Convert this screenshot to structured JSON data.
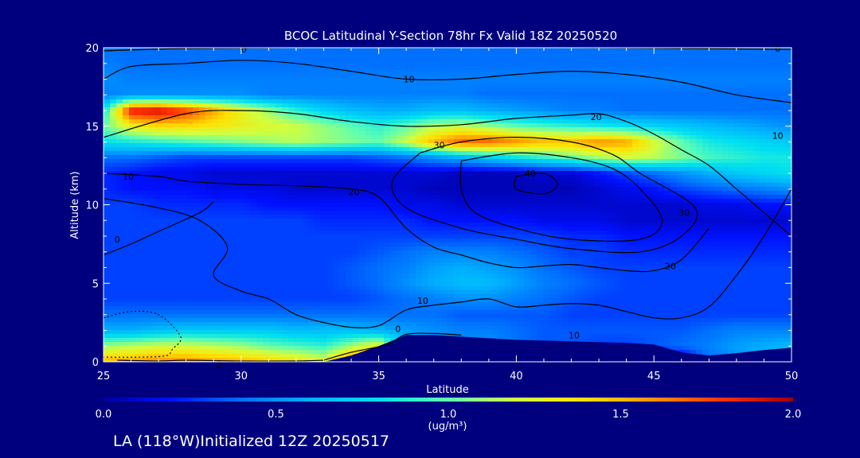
{
  "footer": {
    "caption": "LA (118°W)Initialized 12Z 20250517"
  },
  "chart_data": {
    "type": "heatmap",
    "title": "BCOC Latitudinal Y-Section 78hr  Fx Valid 18Z 20250520",
    "xlabel": "Latitude",
    "ylabel": "Altitude (km)",
    "xlim": [
      25,
      50
    ],
    "ylim": [
      0,
      20
    ],
    "x_ticks": [
      25,
      30,
      35,
      40,
      45,
      50
    ],
    "y_ticks": [
      0,
      5,
      10,
      15,
      20
    ],
    "colorbar": {
      "label": "(ug/m³)",
      "range": [
        0.0,
        2.0
      ],
      "ticks": [
        "0.0",
        "0.5",
        "1.0",
        "1.5",
        "2.0"
      ],
      "colors": [
        "#0000a0",
        "#0010ff",
        "#0070ff",
        "#00b0ff",
        "#00e0f0",
        "#60ffb0",
        "#d0ff40",
        "#ffe000",
        "#ff9000",
        "#ff3000",
        "#a00000"
      ]
    },
    "field": {
      "lat": [
        25,
        26,
        27,
        28,
        29,
        30,
        31,
        32,
        33,
        34,
        35,
        36,
        37,
        38,
        39,
        40,
        41,
        42,
        43,
        44,
        45,
        46,
        47,
        48,
        49,
        50
      ],
      "alt": [
        0,
        1,
        2,
        3,
        4,
        5,
        6,
        7,
        8,
        9,
        10,
        11,
        12,
        13,
        14,
        15,
        16,
        17,
        18,
        19,
        20
      ],
      "values": [
        [
          1.5,
          1.55,
          1.6,
          1.6,
          1.55,
          1.5,
          1.45,
          1.35,
          1.25,
          1.7,
          1.95,
          0.0,
          0.0,
          0.0,
          0.0,
          0.0,
          0.0,
          0.0,
          0.0,
          0.0,
          0.0,
          0.0,
          0.4,
          0.5,
          0.55,
          0.6
        ],
        [
          1.1,
          1.15,
          1.2,
          1.2,
          1.15,
          1.1,
          1.0,
          0.95,
          0.9,
          1.1,
          1.3,
          0.6,
          0.55,
          0.5,
          0.5,
          0.4,
          0.35,
          0.35,
          0.3,
          0.3,
          0.35,
          0.4,
          0.45,
          0.55,
          0.6,
          0.65
        ],
        [
          0.6,
          0.6,
          0.65,
          0.7,
          0.7,
          0.7,
          0.7,
          0.65,
          0.65,
          0.65,
          0.6,
          0.55,
          0.5,
          0.45,
          0.45,
          0.4,
          0.35,
          0.35,
          0.35,
          0.35,
          0.35,
          0.35,
          0.4,
          0.45,
          0.45,
          0.45
        ],
        [
          0.4,
          0.4,
          0.4,
          0.4,
          0.4,
          0.4,
          0.4,
          0.4,
          0.4,
          0.4,
          0.4,
          0.4,
          0.4,
          0.35,
          0.35,
          0.35,
          0.35,
          0.3,
          0.3,
          0.3,
          0.3,
          0.3,
          0.3,
          0.3,
          0.3,
          0.3
        ],
        [
          0.3,
          0.3,
          0.3,
          0.3,
          0.3,
          0.3,
          0.3,
          0.3,
          0.3,
          0.3,
          0.35,
          0.4,
          0.45,
          0.5,
          0.5,
          0.45,
          0.4,
          0.35,
          0.3,
          0.3,
          0.3,
          0.3,
          0.3,
          0.3,
          0.3,
          0.3
        ],
        [
          0.3,
          0.3,
          0.3,
          0.3,
          0.3,
          0.3,
          0.3,
          0.3,
          0.3,
          0.35,
          0.4,
          0.5,
          0.6,
          0.65,
          0.65,
          0.55,
          0.45,
          0.4,
          0.35,
          0.3,
          0.3,
          0.3,
          0.3,
          0.3,
          0.3,
          0.3
        ],
        [
          0.3,
          0.3,
          0.3,
          0.3,
          0.3,
          0.3,
          0.3,
          0.3,
          0.3,
          0.35,
          0.4,
          0.45,
          0.55,
          0.6,
          0.55,
          0.5,
          0.4,
          0.35,
          0.3,
          0.3,
          0.3,
          0.3,
          0.3,
          0.3,
          0.3,
          0.3
        ],
        [
          0.3,
          0.3,
          0.3,
          0.3,
          0.3,
          0.3,
          0.3,
          0.3,
          0.3,
          0.3,
          0.35,
          0.4,
          0.45,
          0.45,
          0.45,
          0.4,
          0.35,
          0.3,
          0.3,
          0.25,
          0.25,
          0.25,
          0.25,
          0.25,
          0.25,
          0.25
        ],
        [
          0.3,
          0.3,
          0.3,
          0.3,
          0.3,
          0.3,
          0.3,
          0.3,
          0.3,
          0.3,
          0.3,
          0.3,
          0.3,
          0.3,
          0.3,
          0.3,
          0.3,
          0.25,
          0.25,
          0.2,
          0.2,
          0.2,
          0.2,
          0.2,
          0.2,
          0.2
        ],
        [
          0.3,
          0.3,
          0.3,
          0.3,
          0.3,
          0.3,
          0.3,
          0.3,
          0.25,
          0.25,
          0.25,
          0.25,
          0.2,
          0.2,
          0.2,
          0.2,
          0.15,
          0.15,
          0.15,
          0.1,
          0.1,
          0.1,
          0.1,
          0.1,
          0.1,
          0.1
        ],
        [
          0.3,
          0.3,
          0.25,
          0.25,
          0.25,
          0.25,
          0.2,
          0.2,
          0.2,
          0.2,
          0.2,
          0.15,
          0.15,
          0.1,
          0.1,
          0.1,
          0.1,
          0.1,
          0.1,
          0.1,
          0.1,
          0.1,
          0.15,
          0.15,
          0.2,
          0.2
        ],
        [
          0.25,
          0.2,
          0.2,
          0.2,
          0.15,
          0.15,
          0.15,
          0.1,
          0.1,
          0.1,
          0.1,
          0.1,
          0.05,
          0.05,
          0.05,
          0.05,
          0.05,
          0.05,
          0.1,
          0.15,
          0.2,
          0.3,
          0.35,
          0.4,
          0.45,
          0.5
        ],
        [
          0.25,
          0.2,
          0.15,
          0.15,
          0.1,
          0.1,
          0.1,
          0.1,
          0.1,
          0.1,
          0.1,
          0.1,
          0.1,
          0.05,
          0.05,
          0.05,
          0.1,
          0.1,
          0.2,
          0.3,
          0.4,
          0.5,
          0.6,
          0.7,
          0.75,
          0.8
        ],
        [
          0.4,
          0.4,
          0.35,
          0.3,
          0.3,
          0.3,
          0.3,
          0.3,
          0.3,
          0.3,
          0.35,
          0.4,
          0.5,
          0.6,
          0.7,
          0.8,
          0.9,
          1.0,
          1.1,
          1.2,
          1.15,
          1.05,
          0.95,
          0.9,
          0.85,
          0.85
        ],
        [
          0.8,
          0.85,
          0.9,
          0.95,
          1.0,
          1.05,
          1.1,
          1.15,
          1.1,
          1.05,
          1.0,
          1.2,
          1.5,
          1.7,
          1.7,
          1.6,
          1.5,
          1.5,
          1.6,
          1.55,
          1.25,
          1.0,
          0.85,
          0.8,
          0.75,
          0.7
        ],
        [
          1.0,
          1.3,
          1.4,
          1.4,
          1.35,
          1.3,
          1.25,
          1.2,
          1.1,
          1.0,
          0.9,
          1.0,
          1.15,
          1.2,
          1.1,
          1.0,
          0.95,
          0.9,
          0.85,
          0.8,
          0.75,
          0.7,
          0.65,
          0.6,
          0.55,
          0.5
        ],
        [
          0.8,
          1.9,
          1.95,
          1.8,
          1.55,
          1.3,
          1.1,
          0.9,
          0.75,
          0.65,
          0.6,
          0.6,
          0.65,
          0.65,
          0.6,
          0.55,
          0.5,
          0.45,
          0.45,
          0.4,
          0.4,
          0.4,
          0.4,
          0.4,
          0.4,
          0.4
        ],
        [
          0.45,
          0.5,
          0.5,
          0.5,
          0.5,
          0.5,
          0.45,
          0.45,
          0.45,
          0.45,
          0.45,
          0.45,
          0.45,
          0.45,
          0.4,
          0.4,
          0.4,
          0.4,
          0.4,
          0.4,
          0.4,
          0.4,
          0.4,
          0.4,
          0.4,
          0.4
        ],
        [
          0.5,
          0.45,
          0.45,
          0.45,
          0.45,
          0.45,
          0.45,
          0.45,
          0.45,
          0.45,
          0.45,
          0.45,
          0.45,
          0.45,
          0.45,
          0.45,
          0.45,
          0.45,
          0.45,
          0.45,
          0.45,
          0.45,
          0.45,
          0.45,
          0.45,
          0.45
        ],
        [
          0.45,
          0.4,
          0.4,
          0.4,
          0.4,
          0.4,
          0.4,
          0.4,
          0.4,
          0.4,
          0.4,
          0.4,
          0.4,
          0.4,
          0.4,
          0.4,
          0.4,
          0.4,
          0.4,
          0.4,
          0.4,
          0.4,
          0.4,
          0.4,
          0.4,
          0.4
        ],
        [
          0.4,
          0.4,
          0.4,
          0.4,
          0.4,
          0.4,
          0.4,
          0.4,
          0.4,
          0.4,
          0.4,
          0.4,
          0.4,
          0.4,
          0.4,
          0.4,
          0.4,
          0.4,
          0.4,
          0.4,
          0.4,
          0.4,
          0.4,
          0.4,
          0.4,
          0.4
        ]
      ]
    },
    "terrain": {
      "lat": [
        25,
        33,
        34,
        35,
        36,
        37,
        38,
        39,
        40,
        41,
        42,
        43,
        44,
        45,
        46,
        47,
        48,
        49,
        50
      ],
      "alt": [
        0,
        0,
        0.4,
        1.0,
        1.7,
        1.7,
        1.6,
        1.5,
        1.4,
        1.35,
        1.3,
        1.25,
        1.2,
        1.1,
        0.6,
        0.4,
        0.55,
        0.75,
        0.9
      ]
    },
    "contours": [
      {
        "level": "0",
        "lat": [
          25.5,
          27,
          28,
          30,
          32,
          33
        ],
        "alt": [
          0.1,
          0.05,
          0.1,
          0.05,
          0.05,
          0.1
        ]
      },
      {
        "level": "0",
        "lat": [
          33,
          34,
          35.3,
          36,
          37,
          38
        ],
        "alt": [
          0.1,
          0.6,
          1.1,
          1.75,
          1.8,
          1.7
        ]
      },
      {
        "level": "0",
        "lat": [
          25,
          28,
          32,
          37,
          42,
          46,
          50
        ],
        "alt": [
          19.8,
          19.95,
          20.0,
          20.0,
          20.0,
          19.95,
          19.9
        ]
      },
      {
        "level": "0",
        "lat": [
          25,
          26,
          27,
          28.5,
          29
        ],
        "alt": [
          6.8,
          7.5,
          8.3,
          9.5,
          10.2
        ]
      },
      {
        "level": "10",
        "lat": [
          25,
          26,
          28,
          30,
          32,
          34,
          36,
          38,
          40,
          42,
          44,
          46,
          48,
          50
        ],
        "alt": [
          18.0,
          18.8,
          19.0,
          19.2,
          19.0,
          18.5,
          18.0,
          18.0,
          18.3,
          18.5,
          18.3,
          17.8,
          17.0,
          16.5
        ]
      },
      {
        "level": "10",
        "lat": [
          25,
          27,
          28.5,
          29.5,
          29,
          30,
          31,
          32,
          33,
          34,
          35,
          36,
          37,
          38,
          39,
          40,
          41,
          42,
          43,
          44,
          45,
          46,
          47,
          48,
          49,
          50
        ],
        "alt": [
          10.4,
          9.8,
          9.0,
          7.3,
          5.5,
          4.5,
          4.0,
          3.0,
          2.5,
          2.2,
          2.3,
          3.3,
          3.6,
          3.8,
          4.0,
          3.5,
          3.6,
          3.7,
          3.6,
          3.2,
          2.8,
          2.8,
          3.5,
          5.5,
          8.0,
          11.0
        ]
      },
      {
        "level": "20",
        "lat": [
          25,
          28,
          30,
          32,
          34,
          36,
          38,
          40,
          42,
          43,
          44,
          45,
          46,
          47,
          48,
          49,
          50
        ],
        "alt": [
          14.3,
          15.8,
          16.0,
          15.8,
          15.3,
          15.0,
          15.1,
          15.5,
          15.7,
          15.8,
          15.3,
          14.5,
          13.5,
          12.5,
          11.0,
          9.5,
          8.0
        ]
      },
      {
        "level": "20",
        "lat": [
          25,
          27,
          28,
          30,
          32,
          34,
          35,
          36,
          37,
          38,
          39,
          40,
          41,
          42,
          43,
          44,
          45,
          46,
          47
        ],
        "alt": [
          12.0,
          11.8,
          11.5,
          11.3,
          11.2,
          11.0,
          10.5,
          8.5,
          7.3,
          6.8,
          6.3,
          6.0,
          6.1,
          6.2,
          6.0,
          5.8,
          5.8,
          6.5,
          8.5
        ]
      },
      {
        "level": "30",
        "lat": [
          36.5,
          38,
          40,
          42,
          43.5,
          44.5,
          46.5,
          46,
          44.5,
          42,
          40,
          38,
          36,
          35.5,
          36.5
        ],
        "alt": [
          13.3,
          14.0,
          14.3,
          14.0,
          13.2,
          12.0,
          9.8,
          8.0,
          7.0,
          7.2,
          7.8,
          8.5,
          9.8,
          11.5,
          13.3
        ]
      },
      {
        "level": "40",
        "lat": [
          38,
          40,
          42,
          43.5,
          44.5,
          45.3,
          44.5,
          42,
          40,
          38.5,
          38,
          38
        ],
        "alt": [
          12.8,
          13.3,
          13.0,
          12.3,
          11.0,
          9.0,
          7.8,
          7.8,
          8.5,
          9.5,
          11.0,
          12.8
        ]
      },
      {
        "level": "50",
        "lat": [
          40,
          41,
          41.5,
          41,
          40,
          40
        ],
        "alt": [
          11.8,
          12.0,
          11.3,
          10.7,
          11.0,
          11.8
        ]
      }
    ],
    "contour_labels": [
      {
        "text": "0",
        "lat": 29.2,
        "alt": -0.15
      },
      {
        "text": "0",
        "lat": 35.7,
        "alt": 2.1
      },
      {
        "text": "0",
        "lat": 30.1,
        "alt": 19.9
      },
      {
        "text": "0",
        "lat": 49.5,
        "alt": 19.95
      },
      {
        "text": "0",
        "lat": 25.5,
        "alt": 7.8
      },
      {
        "text": "10",
        "lat": 36.1,
        "alt": 18.0
      },
      {
        "text": "10",
        "lat": 25.9,
        "alt": 11.8
      },
      {
        "text": "10",
        "lat": 36.6,
        "alt": 3.9
      },
      {
        "text": "10",
        "lat": 42.1,
        "alt": 1.7
      },
      {
        "text": "10",
        "lat": 49.5,
        "alt": 14.4
      },
      {
        "text": "20",
        "lat": 42.9,
        "alt": 15.6
      },
      {
        "text": "20",
        "lat": 34.1,
        "alt": 10.8
      },
      {
        "text": "20",
        "lat": 45.6,
        "alt": 6.1
      },
      {
        "text": "30",
        "lat": 37.2,
        "alt": 13.8
      },
      {
        "text": "30",
        "lat": 46.1,
        "alt": 9.5
      },
      {
        "text": "40",
        "lat": 40.5,
        "alt": 12.0
      }
    ],
    "dotted_region": {
      "lat": [
        25,
        26,
        27,
        27.8,
        27.5,
        27.3,
        26.5,
        25
      ],
      "alt": [
        2.8,
        3.2,
        3.0,
        1.6,
        0.8,
        0.4,
        0.3,
        0.3
      ]
    }
  }
}
